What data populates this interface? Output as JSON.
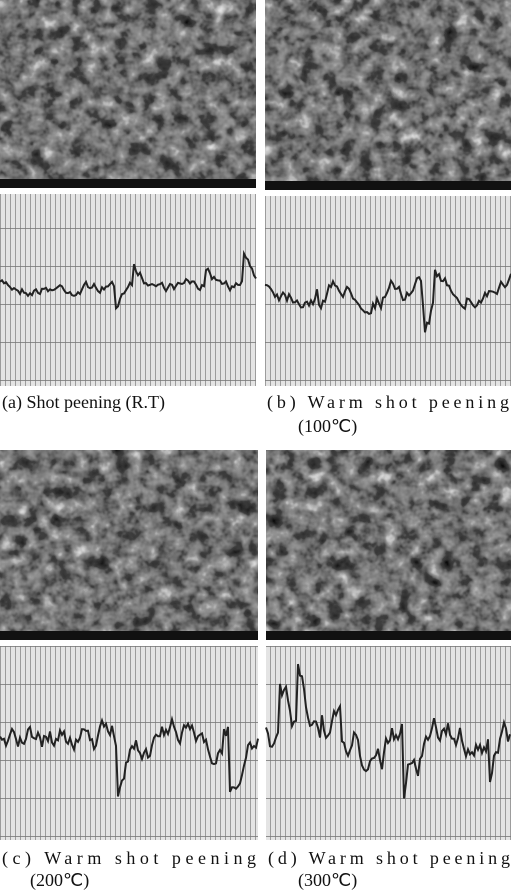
{
  "panels": [
    {
      "caption": [
        "(a) Shot peening (R.T)"
      ]
    },
    {
      "caption": [
        "(b) Warm shot peening",
        "(100℃)"
      ]
    },
    {
      "caption": [
        "(c) Warm shot peening",
        "(200℃)"
      ]
    },
    {
      "caption": [
        "(d) Warm shot peening",
        "(300℃)"
      ]
    }
  ]
}
